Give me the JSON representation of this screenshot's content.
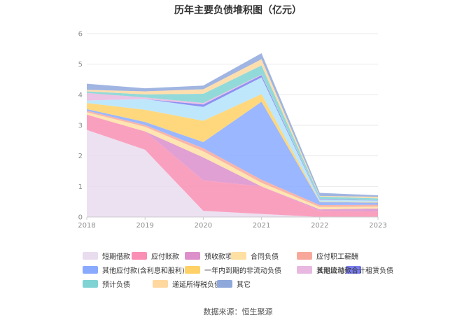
{
  "chart_data": {
    "type": "area",
    "title": "历年主要负债堆积图（亿元）",
    "x": [
      "2018",
      "2019",
      "2020",
      "2021",
      "2022",
      "2023"
    ],
    "ylim": [
      0,
      6
    ],
    "yticks": [
      0,
      1,
      2,
      3,
      4,
      5,
      6
    ],
    "grid": true,
    "legend_position": "bottom",
    "source": "数据来源：恒生聚源",
    "series": [
      {
        "name": "短期借款",
        "color": "#e9dcef",
        "values": [
          2.85,
          2.2,
          0.2,
          0.1,
          0.0,
          0.0
        ]
      },
      {
        "name": "应付账款",
        "color": "#f98fb4",
        "values": [
          0.5,
          0.6,
          1.0,
          0.9,
          0.2,
          0.18
        ]
      },
      {
        "name": "预收款项",
        "color": "#dc8fcb",
        "values": [
          0.0,
          0.0,
          0.75,
          0.0,
          0.05,
          0.1
        ]
      },
      {
        "name": "合同负债",
        "color": "#ffe0a3",
        "values": [
          0.08,
          0.15,
          0.2,
          0.12,
          0.08,
          0.06
        ]
      },
      {
        "name": "应付职工薪酬",
        "color": "#f8a89b",
        "values": [
          0.05,
          0.06,
          0.1,
          0.1,
          0.06,
          0.06
        ]
      },
      {
        "name": "其他应付款(含利息和股利)",
        "color": "#8aaaff",
        "values": [
          0.05,
          0.1,
          0.2,
          2.55,
          0.1,
          0.07
        ]
      },
      {
        "name": "一年内到期的非流动负债",
        "color": "#ffd166",
        "values": [
          0.2,
          0.4,
          0.7,
          0.25,
          0.02,
          0.02
        ]
      },
      {
        "name": "其他流动负债",
        "color": "#b3e3fb",
        "values": [
          0.08,
          0.35,
          0.45,
          0.55,
          0.05,
          0.05
        ]
      },
      {
        "name": "租赁负债",
        "color": "#7a7ef0",
        "values": [
          0.0,
          0.0,
          0.08,
          0.07,
          0.02,
          0.01
        ]
      },
      {
        "name": "长期应付款合计",
        "color": "#e8b8e0",
        "values": [
          0.25,
          0.05,
          0.05,
          0.02,
          0.01,
          0.0
        ]
      },
      {
        "name": "预计负债",
        "color": "#7fd3d3",
        "values": [
          0.05,
          0.1,
          0.3,
          0.3,
          0.08,
          0.06
        ]
      },
      {
        "name": "递延所得税负债",
        "color": "#ffd8a0",
        "values": [
          0.05,
          0.1,
          0.15,
          0.2,
          0.02,
          0.05
        ]
      },
      {
        "name": "其它",
        "color": "#8fa8dc",
        "values": [
          0.2,
          0.1,
          0.12,
          0.2,
          0.1,
          0.05
        ]
      }
    ]
  }
}
